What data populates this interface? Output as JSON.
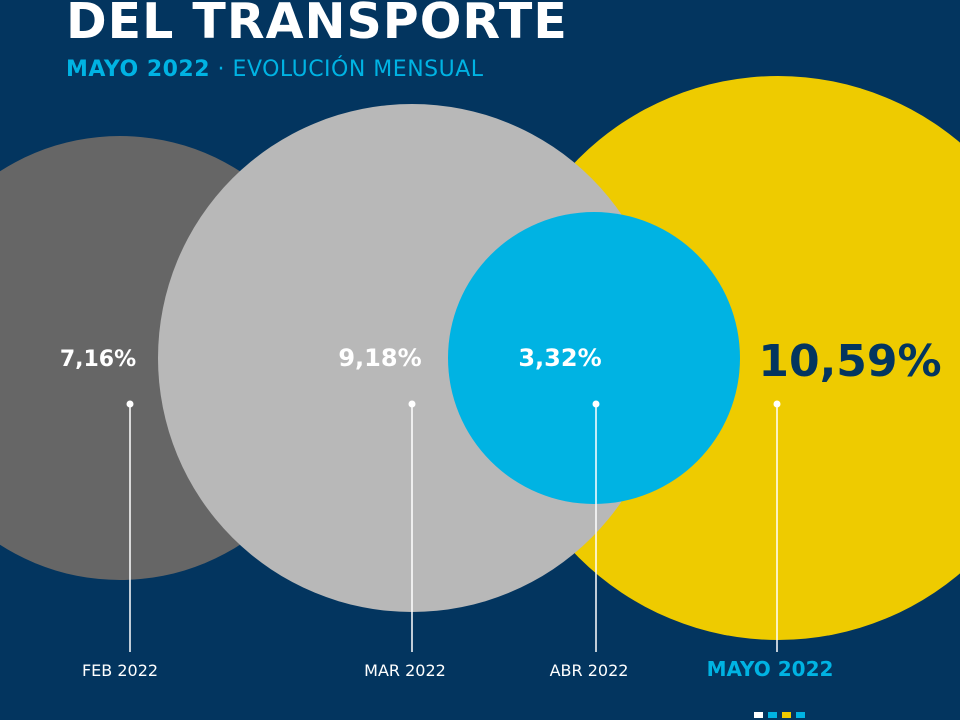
{
  "header": {
    "title": "DEL TRANSPORTE",
    "subtitle_highlight": "MAYO 2022",
    "subtitle_separator": " · ",
    "subtitle_rest": "EVOLUCIÓN MENSUAL"
  },
  "colors": {
    "background": "#03355f",
    "accent": "#00b3e3",
    "feb": "#666666",
    "mar": "#b8b8b8",
    "abr": "#00b3e3",
    "may": "#eecb00",
    "dark_text": "#03355f"
  },
  "chart_data": {
    "type": "bubble",
    "categories": [
      "FEB 2022",
      "MAR 2022",
      "ABR 2022",
      "MAYO 2022"
    ],
    "values": [
      7.16,
      9.18,
      3.32,
      10.59
    ],
    "value_labels": [
      "7,16%",
      "9,18%",
      "3,32%",
      "10,59%"
    ],
    "unit": "%",
    "highlight": "MAYO 2022",
    "title": "DEL TRANSPORTE",
    "subtitle": "MAYO 2022 · EVOLUCIÓN MENSUAL"
  },
  "legend_dots": [
    "#ffffff",
    "#00b3e3",
    "#eecb00",
    "#00b3e3"
  ]
}
